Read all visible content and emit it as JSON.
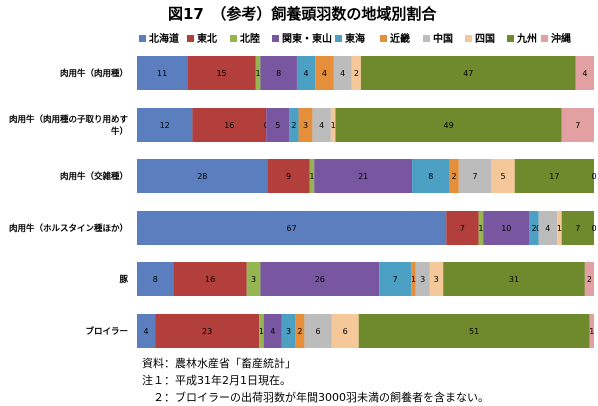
{
  "chart_data": {
    "type": "bar",
    "orientation": "horizontal",
    "stacked": true,
    "percent": true,
    "title": "図17　（参考）飼養頭羽数の地域別割合",
    "unit": "(%)",
    "legend_position": "top",
    "grid": false,
    "xlim": [
      0,
      100
    ],
    "categories": [
      "肉用牛（肉用種）",
      "肉用牛（肉用種の子取り用めす牛）",
      "肉用牛（交雑種）",
      "肉用牛（ホルスタイン種ほか）",
      "豚",
      "ブロイラー"
    ],
    "series": [
      {
        "name": "北海道",
        "color": "#5a7ebe",
        "values": [
          11,
          12,
          28,
          67,
          8,
          4
        ]
      },
      {
        "name": "東北",
        "color": "#b33f3d",
        "values": [
          15,
          16,
          9,
          7,
          16,
          23
        ]
      },
      {
        "name": "北陸",
        "color": "#94b550",
        "values": [
          1,
          0,
          1,
          1,
          3,
          1
        ]
      },
      {
        "name": "関東・東山",
        "color": "#7856a0",
        "values": [
          8,
          5,
          21,
          10,
          26,
          4
        ]
      },
      {
        "name": "東海",
        "color": "#4ba0c4",
        "values": [
          4,
          2,
          8,
          2,
          7,
          3
        ]
      },
      {
        "name": "近畿",
        "color": "#e58f3a",
        "values": [
          4,
          3,
          2,
          0,
          1,
          2
        ]
      },
      {
        "name": "中国",
        "color": "#bcbcbc",
        "values": [
          4,
          4,
          7,
          4,
          3,
          6
        ]
      },
      {
        "name": "四国",
        "color": "#f5c89a",
        "values": [
          2,
          1,
          5,
          1,
          3,
          6
        ]
      },
      {
        "name": "九州",
        "color": "#6f8a2c",
        "values": [
          47,
          49,
          17,
          7,
          31,
          51
        ]
      },
      {
        "name": "沖縄",
        "color": "#e3a0a3",
        "values": [
          4,
          7,
          0,
          0,
          2,
          1
        ]
      }
    ]
  },
  "notes": [
    "資料：農林水産省「畜産統計」",
    "注１：平成31年2月1日現在。",
    "　２：ブロイラーの出荷羽数が年間3000羽未満の飼養者を含まない。"
  ]
}
